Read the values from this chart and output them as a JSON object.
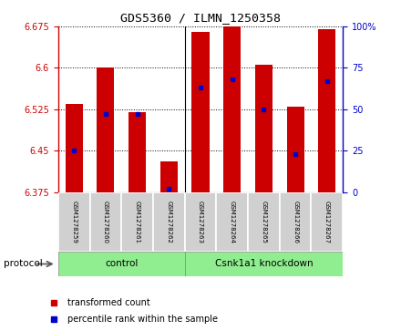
{
  "title": "GDS5360 / ILMN_1250358",
  "samples": [
    "GSM1278259",
    "GSM1278260",
    "GSM1278261",
    "GSM1278262",
    "GSM1278263",
    "GSM1278264",
    "GSM1278265",
    "GSM1278266",
    "GSM1278267"
  ],
  "bar_bottoms": [
    6.375,
    6.375,
    6.375,
    6.375,
    6.375,
    6.375,
    6.375,
    6.375,
    6.375
  ],
  "bar_tops": [
    6.535,
    6.6,
    6.52,
    6.43,
    6.665,
    6.675,
    6.605,
    6.53,
    6.67
  ],
  "percentile_values": [
    25,
    47,
    47,
    2,
    63,
    68,
    50,
    23,
    67
  ],
  "ylim_left": [
    6.375,
    6.675
  ],
  "ylim_right": [
    0,
    100
  ],
  "yticks_left": [
    6.375,
    6.45,
    6.525,
    6.6,
    6.675
  ],
  "yticks_right": [
    0,
    25,
    50,
    75,
    100
  ],
  "bar_color": "#cc0000",
  "dot_color": "#0000cc",
  "green_color": "#90EE90",
  "bar_width": 0.55,
  "left_tick_color": "#cc0000",
  "right_tick_color": "#0000cc",
  "control_count": 4,
  "control_label": "control",
  "knockdown_label": "Csnk1a1 knockdown",
  "protocol_label": "protocol",
  "legend_red_label": "transformed count",
  "legend_blue_label": "percentile rank within the sample"
}
